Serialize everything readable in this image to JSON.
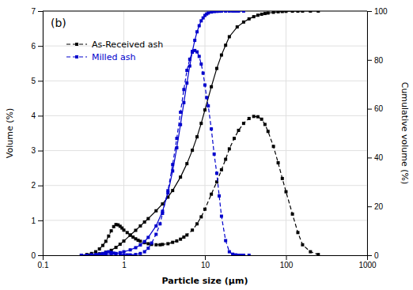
{
  "chart_data": {
    "type": "line",
    "title": "(b)",
    "xlabel": "Particle size (μm)",
    "ylabel": "Volume (%)",
    "y2label": "Cumulative volume (%)",
    "log": "x",
    "grid": true,
    "legend": "upper left",
    "xlim": [
      0.1,
      1000
    ],
    "xticks": [
      0.1,
      1,
      10,
      100,
      1000
    ],
    "ylim": [
      0,
      7
    ],
    "yticks": [
      0,
      1,
      2,
      3,
      4,
      5,
      6,
      7
    ],
    "y2lim": [
      0,
      100
    ],
    "y2ticks": [
      0,
      20,
      40,
      60,
      80,
      100
    ],
    "series": [
      {
        "name": "As-Received ash",
        "color": "#000000",
        "line_style": "dashed",
        "marker": "square",
        "x": [
          0.3,
          0.35,
          0.4,
          0.45,
          0.5,
          0.55,
          0.6,
          0.65,
          0.7,
          0.75,
          0.8,
          0.85,
          0.9,
          0.95,
          1.0,
          1.1,
          1.2,
          1.3,
          1.4,
          1.5,
          1.6,
          1.8,
          2.0,
          2.2,
          2.5,
          2.8,
          3.0,
          3.5,
          4.0,
          4.5,
          5.0,
          5.5,
          6.0,
          7.0,
          8.0,
          9.0,
          10.0,
          12.0,
          14.0,
          16.0,
          18.0,
          20.0,
          23.0,
          26.0,
          30.0,
          35.0,
          40.0,
          45.0,
          50.0,
          55.0,
          60.0,
          70.0,
          80.0,
          90.0,
          100.0,
          120.0,
          140.0,
          160.0,
          200.0,
          250.0
        ],
        "values": [
          0.0,
          0.02,
          0.05,
          0.1,
          0.18,
          0.28,
          0.4,
          0.55,
          0.7,
          0.82,
          0.88,
          0.87,
          0.83,
          0.78,
          0.72,
          0.65,
          0.58,
          0.52,
          0.47,
          0.43,
          0.4,
          0.36,
          0.33,
          0.31,
          0.3,
          0.3,
          0.31,
          0.33,
          0.37,
          0.41,
          0.46,
          0.52,
          0.58,
          0.72,
          0.9,
          1.1,
          1.32,
          1.75,
          2.1,
          2.45,
          2.75,
          3.05,
          3.35,
          3.58,
          3.78,
          3.92,
          3.98,
          3.97,
          3.9,
          3.75,
          3.55,
          3.12,
          2.65,
          2.2,
          1.82,
          1.18,
          0.65,
          0.3,
          0.1,
          0.02
        ]
      },
      {
        "color": "#000000",
        "line_style": "solid",
        "marker": "square",
        "axis": "y2",
        "x": [
          0.3,
          0.4,
          0.5,
          0.6,
          0.7,
          0.8,
          0.9,
          1.0,
          1.2,
          1.4,
          1.6,
          1.8,
          2.0,
          2.5,
          3.0,
          3.5,
          4.0,
          5.0,
          6.0,
          7.0,
          8.0,
          9.0,
          10.0,
          12.0,
          14.0,
          16.0,
          18.0,
          20.0,
          25.0,
          30.0,
          35.0,
          40.0,
          45.0,
          50.0,
          55.0,
          60.0,
          70.0,
          80.0,
          90.0,
          100.0,
          120.0,
          140.0,
          160.0,
          200.0,
          250.0
        ],
        "values": [
          0.0,
          0.2,
          0.6,
          1.2,
          2.0,
          3.2,
          4.5,
          5.8,
          8.2,
          10.2,
          12.0,
          13.6,
          15.0,
          18.2,
          21.0,
          23.8,
          26.5,
          32.0,
          37.5,
          43.0,
          48.5,
          54.0,
          59.5,
          69.0,
          76.5,
          82.0,
          86.0,
          89.5,
          93.5,
          95.5,
          96.8,
          97.7,
          98.3,
          98.7,
          99.0,
          99.2,
          99.5,
          99.7,
          99.82,
          99.9,
          99.96,
          99.98,
          100.0,
          100.0,
          100.0
        ]
      },
      {
        "name": "Milled ash",
        "color": "#0000cc",
        "line_style": "dashed",
        "marker": "square",
        "x": [
          0.3,
          0.35,
          0.4,
          0.45,
          0.5,
          0.55,
          0.6,
          0.65,
          0.7,
          0.75,
          0.8,
          0.9,
          1.0,
          1.1,
          1.2,
          1.4,
          1.6,
          1.8,
          2.0,
          2.2,
          2.5,
          2.8,
          3.0,
          3.5,
          4.0,
          4.5,
          5.0,
          5.5,
          6.0,
          6.5,
          7.0,
          7.5,
          8.0,
          8.5,
          9.0,
          9.5,
          10.0,
          10.5,
          11.0,
          12.0,
          13.0,
          14.0,
          15.0,
          16.0,
          18.0,
          20.0,
          22.0,
          24.0,
          26.0,
          28.0,
          30.0,
          35.0
        ],
        "values": [
          0.0,
          0.0,
          0.01,
          0.02,
          0.03,
          0.05,
          0.08,
          0.1,
          0.08,
          0.06,
          0.04,
          0.02,
          0.01,
          0.01,
          0.01,
          0.02,
          0.05,
          0.1,
          0.2,
          0.35,
          0.6,
          0.9,
          1.2,
          1.85,
          2.6,
          3.35,
          4.1,
          4.75,
          5.3,
          5.62,
          5.82,
          5.87,
          5.83,
          5.7,
          5.48,
          5.22,
          4.88,
          4.52,
          4.28,
          3.62,
          2.9,
          2.35,
          1.7,
          1.12,
          0.42,
          0.1,
          0.03,
          0.01,
          0.0,
          0.0,
          0.0,
          0.0
        ]
      },
      {
        "color": "#0000cc",
        "line_style": "solid",
        "marker": "square",
        "axis": "y2",
        "x": [
          0.3,
          0.4,
          0.5,
          0.6,
          0.7,
          0.8,
          0.9,
          1.0,
          1.2,
          1.4,
          1.6,
          1.8,
          2.0,
          2.5,
          3.0,
          3.5,
          4.0,
          4.5,
          5.0,
          5.5,
          6.0,
          6.5,
          7.0,
          7.5,
          8.0,
          8.5,
          9.0,
          9.5,
          10.0,
          10.5,
          11.0,
          12.0,
          13.0,
          14.0,
          15.0,
          16.0,
          18.0,
          20.0,
          22.0,
          24.0,
          26.0,
          30.0
        ],
        "values": [
          0.0,
          0.05,
          0.12,
          0.25,
          0.45,
          0.72,
          1.05,
          1.42,
          2.2,
          3.1,
          4.2,
          5.6,
          7.3,
          12.0,
          18.0,
          25.5,
          34.5,
          44.0,
          53.5,
          62.5,
          70.5,
          77.5,
          83.5,
          88.0,
          91.5,
          94.0,
          96.0,
          97.2,
          98.2,
          98.8,
          99.2,
          99.6,
          99.8,
          99.9,
          99.95,
          99.98,
          100.0,
          100.0,
          100.0,
          100.0,
          100.0,
          100.0
        ]
      }
    ]
  }
}
